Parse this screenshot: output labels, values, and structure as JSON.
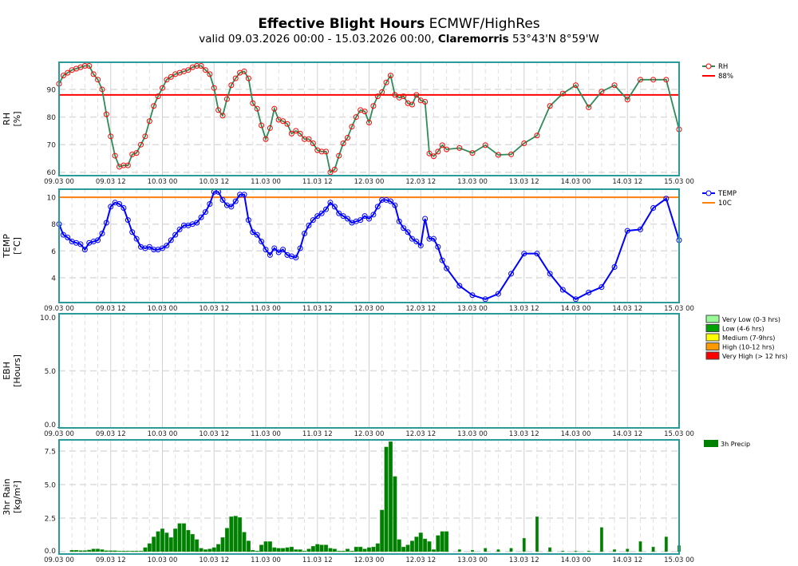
{
  "header": {
    "title_bold": "Effective Blight Hours",
    "title_rest": " ECMWF/HighRes",
    "subtitle_pre": "valid 09.03.2026 00:00 - 15.03.2026 00:00, ",
    "subtitle_location": "Claremorris",
    "subtitle_coords": " 53°43'N 8°59'W"
  },
  "colors": {
    "frame": "#2a9a9a",
    "rh_line": "#2e8b57",
    "rh_marker": "#ff0000",
    "rh_threshold": "#ff0000",
    "temp_line": "#0000ff",
    "temp_threshold": "#ff7f0e",
    "rain": "#008000",
    "grid": "#d9d9d9"
  },
  "x_axis": {
    "start": "2026-03-09T00:00",
    "end": "2026-03-15T00:00",
    "tick_labels": [
      "09.03 00",
      "09.03 12",
      "10.03 00",
      "10.03 12",
      "11.03 00",
      "11.03 12",
      "12.03 00",
      "12.03 12",
      "13.03 00",
      "13.03 12",
      "14.03 00",
      "14.03 12",
      "15.03 00"
    ]
  },
  "chart_data": [
    {
      "type": "line",
      "ylabel": "RH",
      "yunit": "[%]",
      "ylim": [
        58.8,
        99.8
      ],
      "yticks": [
        "60",
        "70",
        "80",
        "90"
      ],
      "grid": true,
      "legend_placement": "right",
      "series": [
        {
          "name": "RH",
          "segments": [
            {
              "start": "2026-03-09T00:00",
              "interval_hours": 1,
              "values": [
                92,
                95,
                96,
                97,
                97.5,
                98,
                98.5,
                98.5,
                95.5,
                93.5,
                90,
                81,
                73,
                66,
                62,
                62.5,
                62.5,
                66.5,
                67,
                70,
                73,
                78.5,
                84,
                87.5,
                90.5,
                93.5,
                94.5,
                95.5,
                96,
                96.5,
                97,
                98,
                98.5,
                98.5,
                97,
                95.5,
                90.5,
                82.5,
                80.5,
                86.5,
                91.5,
                94,
                96,
                96.5,
                94,
                85,
                83,
                77,
                72,
                76,
                83,
                79,
                78.5,
                77.5,
                74,
                75,
                74,
                72,
                72,
                70.5,
                68,
                67.5,
                67.5,
                60,
                61,
                66,
                70.5,
                72.5,
                76.5,
                80,
                82.5,
                82,
                78,
                84,
                87.5,
                89,
                92.5,
                95,
                88,
                87,
                87.5,
                85,
                84.5,
                88,
                86,
                85.5,
                66.8,
                65.8,
                67.5,
                69.8,
                68.3
              ]
            },
            {
              "start": "2026-03-12T21:00",
              "interval_hours": 3,
              "values": [
                68.8,
                67,
                69.8,
                66.3,
                66.5,
                70.5,
                73.3,
                84,
                88.5,
                91.5,
                83.5,
                89.2,
                91.5,
                86.3,
                93.5,
                93.5,
                93.5,
                75.5
              ]
            }
          ]
        }
      ],
      "threshold": {
        "name": "88%",
        "value": 88
      }
    },
    {
      "type": "line",
      "ylabel": "TEMP",
      "yunit": "[°C]",
      "ylim": [
        2.15,
        10.6
      ],
      "yticks": [
        "4",
        "6",
        "8",
        "10"
      ],
      "grid": true,
      "legend_placement": "right",
      "series": [
        {
          "name": "TEMP",
          "segments": [
            {
              "start": "2026-03-09T00:00",
              "interval_hours": 1,
              "values": [
                8.0,
                7.2,
                7.0,
                6.7,
                6.6,
                6.5,
                6.1,
                6.6,
                6.7,
                6.8,
                7.3,
                8.1,
                9.3,
                9.6,
                9.5,
                9.2,
                8.3,
                7.4,
                6.9,
                6.3,
                6.2,
                6.3,
                6.1,
                6.1,
                6.2,
                6.4,
                6.8,
                7.2,
                7.6,
                7.9,
                7.9,
                8.0,
                8.1,
                8.5,
                8.9,
                9.5,
                10.4,
                10.4,
                9.8,
                9.4,
                9.3,
                9.7,
                10.2,
                10.2,
                8.3,
                7.4,
                7.2,
                6.7,
                6.1,
                5.7,
                6.2,
                5.9,
                6.1,
                5.7,
                5.6,
                5.5,
                6.2,
                7.3,
                7.9,
                8.3,
                8.6,
                8.8,
                9.1,
                9.6,
                9.3,
                8.8,
                8.6,
                8.4,
                8.1,
                8.2,
                8.3,
                8.6,
                8.4,
                8.7,
                9.3,
                9.8,
                9.8,
                9.7,
                9.4,
                8.2,
                7.7,
                7.4,
                6.9,
                6.7,
                6.4,
                8.4,
                6.9,
                6.9,
                6.3,
                5.3,
                4.7
              ]
            },
            {
              "start": "2026-03-12T21:00",
              "interval_hours": 3,
              "values": [
                3.4,
                2.7,
                2.4,
                2.8,
                4.3,
                5.8,
                5.8,
                4.3,
                3.1,
                2.4,
                2.9,
                3.3,
                4.8,
                7.5,
                7.6,
                9.2,
                9.9,
                6.8
              ]
            }
          ]
        }
      ],
      "threshold": {
        "name": "10C",
        "value": 10
      }
    },
    {
      "type": "bar",
      "ylabel": "EBH",
      "yunit": "[Hours]",
      "ylim": [
        0,
        10
      ],
      "yticks": [
        "0.0",
        "5.0",
        "10.0"
      ],
      "grid": true,
      "legend_placement": "right",
      "legend": [
        {
          "name": "Very Low (0-3 hrs)",
          "color": "#98fb98"
        },
        {
          "name": "Low (4-6 hrs)",
          "color": "#00a000"
        },
        {
          "name": "Medium (7-9hrs)",
          "color": "#ffff00"
        },
        {
          "name": "High (10-12 hrs)",
          "color": "#ff9900"
        },
        {
          "name": "Very High (> 12 hrs)",
          "color": "#ff0000"
        }
      ],
      "series": [
        {
          "segments": [
            {
              "start": "2026-03-09T00:00",
              "interval_hours": 3,
              "values": [
                0,
                0,
                0,
                0,
                0,
                0,
                0,
                0,
                0,
                0,
                0,
                0,
                0,
                0,
                0,
                0,
                0,
                0,
                0,
                0,
                0,
                0,
                0,
                0,
                0,
                0,
                0,
                0,
                0,
                0,
                0,
                0,
                0,
                0,
                0,
                0,
                0,
                0,
                0,
                0,
                0,
                0,
                0,
                0,
                0,
                0,
                0,
                0
              ]
            }
          ]
        }
      ]
    },
    {
      "type": "bar",
      "ylabel": "3hr Rain",
      "yunit": "[kg/m²]",
      "ylim": [
        -0.18,
        8.33
      ],
      "yticks": [
        "0.0",
        "2.5",
        "5.0",
        "7.5"
      ],
      "grid": true,
      "legend_placement": "right",
      "series": [
        {
          "name": "3h Precip",
          "segments": [
            {
              "start": "2026-03-09T03:00",
              "interval_hours": 1,
              "values": [
                0.1,
                0.1,
                0.08,
                0.08,
                0.12,
                0.2,
                0.2,
                0.15,
                0.07,
                0.07,
                0.07,
                0.05,
                0.05,
                0.05,
                0.05,
                0.05,
                0.05,
                0.3,
                0.6,
                1.1,
                1.5,
                1.7,
                1.4,
                1.05,
                1.7,
                2.1,
                2.1,
                1.6,
                1.3,
                0.9,
                0.25,
                0.15,
                0.2,
                0.3,
                0.55,
                1.05,
                1.75,
                2.6,
                2.65,
                2.55,
                1.45,
                0.8,
                0.1,
                0.05,
                0.5,
                0.75,
                0.75,
                0.3,
                0.25,
                0.25,
                0.3,
                0.35,
                0.15,
                0.15,
                0.05,
                0.2,
                0.4,
                0.55,
                0.5,
                0.5,
                0.25,
                0.2,
                0.05,
                0.05,
                0.2,
                0.05,
                0.35,
                0.35,
                0.2,
                0.3,
                0.35,
                0.6,
                3.1,
                7.8,
                8.2,
                5.6,
                0.9,
                0.35,
                0.5,
                0.8,
                1.1,
                1.4,
                0.95,
                0.75,
                0.15,
                1.2,
                1.5,
                1.5
              ]
            },
            {
              "start": "2026-03-12T21:00",
              "interval_hours": 3,
              "values": [
                0.15,
                0.1,
                0.25,
                0.15,
                0.25,
                1.0,
                2.6,
                0.3,
                0.05,
                0.05,
                0.05,
                1.8,
                0.15,
                0.2,
                0.75,
                0.35,
                1.1,
                0.45
              ]
            }
          ]
        }
      ]
    }
  ]
}
